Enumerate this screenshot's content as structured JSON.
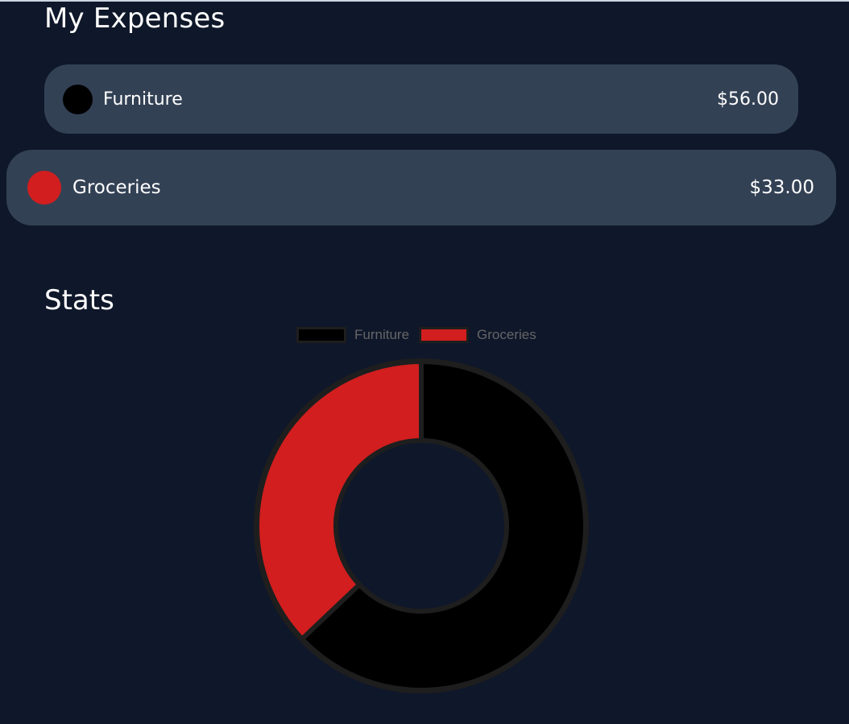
{
  "header": {
    "title": "My Expenses"
  },
  "expenses": [
    {
      "name": "Furniture",
      "amount": "$56.00",
      "color": "#000000"
    },
    {
      "name": "Groceries",
      "amount": "$33.00",
      "color": "#d21e1e"
    }
  ],
  "stats": {
    "title": "Stats"
  },
  "colors": {
    "background": "#0f172a",
    "card": "#334155",
    "slice_border": "#1e1e1e"
  },
  "chart_data": {
    "type": "pie",
    "variant": "doughnut",
    "categories": [
      "Furniture",
      "Groceries"
    ],
    "values": [
      56,
      33
    ],
    "colors": [
      "#000000",
      "#d21e1e"
    ],
    "legend_position": "top-center",
    "title": ""
  }
}
